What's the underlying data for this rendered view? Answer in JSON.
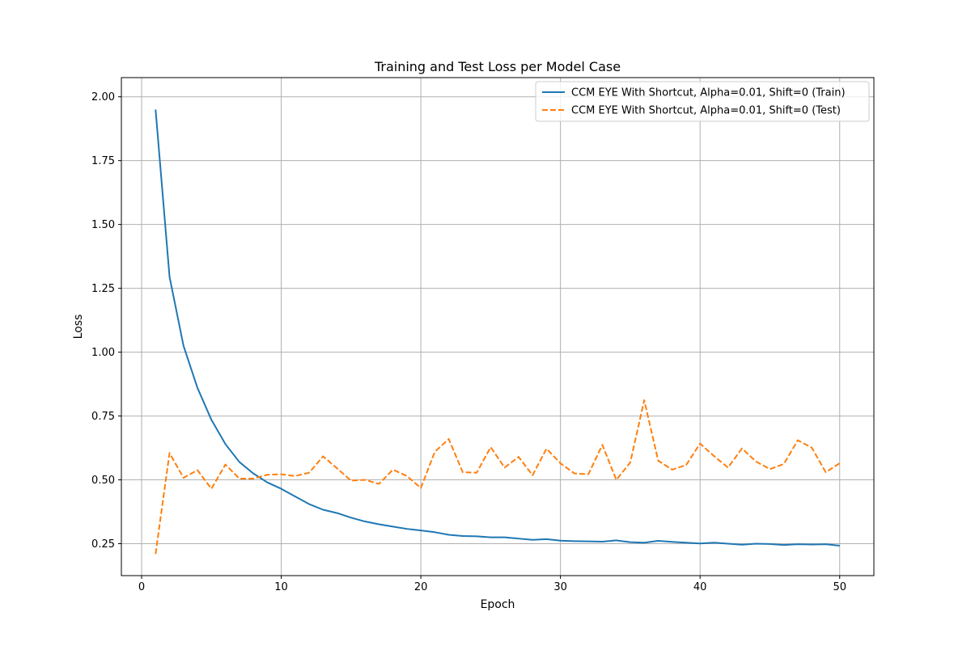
{
  "chart_data": {
    "type": "line",
    "title": "Training and Test Loss per Model Case",
    "xlabel": "Epoch",
    "ylabel": "Loss",
    "xlim": [
      -1.45,
      52.45
    ],
    "ylim": [
      0.125,
      2.075
    ],
    "xticks": [
      0,
      10,
      20,
      30,
      40,
      50
    ],
    "yticks": [
      0.25,
      0.5,
      0.75,
      1.0,
      1.25,
      1.5,
      1.75,
      2.0
    ],
    "ytick_labels": [
      "0.25",
      "0.50",
      "0.75",
      "1.00",
      "1.25",
      "1.50",
      "1.75",
      "2.00"
    ],
    "grid": true,
    "legend_position": "top-right",
    "x": [
      1,
      2,
      3,
      4,
      5,
      6,
      7,
      8,
      9,
      10,
      11,
      12,
      13,
      14,
      15,
      16,
      17,
      18,
      19,
      20,
      21,
      22,
      23,
      24,
      25,
      26,
      27,
      28,
      29,
      30,
      31,
      32,
      33,
      34,
      35,
      36,
      37,
      38,
      39,
      40,
      41,
      42,
      43,
      44,
      45,
      46,
      47,
      48,
      49,
      50
    ],
    "series": [
      {
        "name": "CCM EYE With Shortcut, Alpha=0.01, Shift=0 (Train)",
        "color": "#1f77b4",
        "dash": "solid",
        "values": [
          1.95,
          1.295,
          1.025,
          0.86,
          0.735,
          0.64,
          0.57,
          0.525,
          0.49,
          0.465,
          0.435,
          0.405,
          0.383,
          0.37,
          0.352,
          0.337,
          0.326,
          0.317,
          0.308,
          0.302,
          0.295,
          0.285,
          0.28,
          0.279,
          0.275,
          0.275,
          0.27,
          0.265,
          0.268,
          0.262,
          0.26,
          0.259,
          0.258,
          0.263,
          0.256,
          0.254,
          0.261,
          0.257,
          0.254,
          0.251,
          0.254,
          0.25,
          0.246,
          0.25,
          0.249,
          0.245,
          0.248,
          0.247,
          0.248,
          0.242
        ]
      },
      {
        "name": "CCM EYE With Shortcut, Alpha=0.01, Shift=0 (Test)",
        "color": "#ff7f0e",
        "dash": "dashed",
        "values": [
          0.21,
          0.605,
          0.508,
          0.538,
          0.465,
          0.56,
          0.505,
          0.505,
          0.52,
          0.522,
          0.515,
          0.528,
          0.592,
          0.545,
          0.497,
          0.5,
          0.484,
          0.54,
          0.515,
          0.468,
          0.61,
          0.66,
          0.53,
          0.528,
          0.628,
          0.548,
          0.59,
          0.518,
          0.622,
          0.565,
          0.525,
          0.522,
          0.637,
          0.5,
          0.568,
          0.812,
          0.575,
          0.54,
          0.558,
          0.642,
          0.593,
          0.548,
          0.623,
          0.572,
          0.542,
          0.562,
          0.655,
          0.626,
          0.53,
          0.565
        ]
      }
    ]
  }
}
